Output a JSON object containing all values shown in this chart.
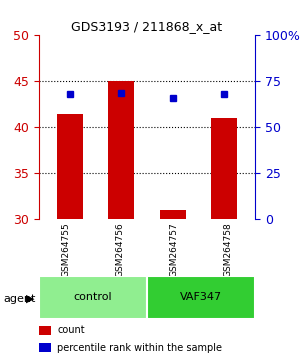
{
  "title": "GDS3193 / 211868_x_at",
  "samples": [
    "GSM264755",
    "GSM264756",
    "GSM264757",
    "GSM264758"
  ],
  "bar_values": [
    41.5,
    45.0,
    31.0,
    41.0
  ],
  "bar_bottom": [
    30,
    30,
    30,
    30
  ],
  "percentile_values": [
    68,
    68.5,
    66,
    68
  ],
  "ylim_left": [
    30,
    50
  ],
  "ylim_right": [
    0,
    100
  ],
  "yticks_left": [
    30,
    35,
    40,
    45,
    50
  ],
  "yticks_right": [
    0,
    25,
    50,
    75,
    100
  ],
  "ytick_labels_right": [
    "0",
    "25",
    "50",
    "75",
    "100%"
  ],
  "bar_color": "#cc0000",
  "percentile_color": "#0000cc",
  "bar_width": 0.5,
  "groups": [
    {
      "label": "control",
      "samples": [
        0,
        1
      ],
      "color": "#90ee90"
    },
    {
      "label": "VAF347",
      "samples": [
        2,
        3
      ],
      "color": "#32cd32"
    }
  ],
  "group_label": "agent",
  "xlabel_color": "#000000",
  "left_tick_color": "#cc0000",
  "right_tick_color": "#0000cc",
  "legend_items": [
    {
      "label": "count",
      "color": "#cc0000"
    },
    {
      "label": "percentile rank within the sample",
      "color": "#0000cc"
    }
  ],
  "dotted_yticks": [
    35,
    40,
    45
  ],
  "background_color": "#ffffff"
}
